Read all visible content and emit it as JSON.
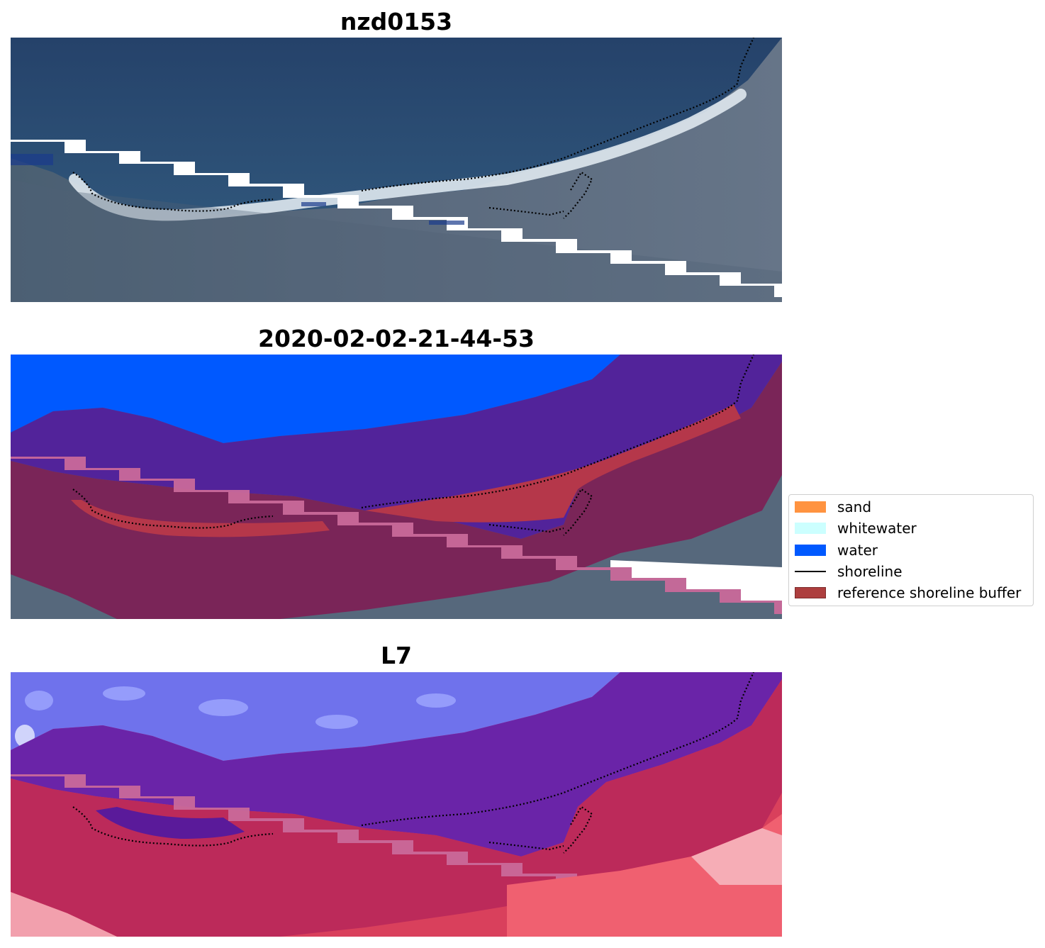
{
  "panels": [
    {
      "title": "nzd0153"
    },
    {
      "title": "2020-02-02-21-44-53"
    },
    {
      "title": "L7"
    }
  ],
  "legend": {
    "items": [
      {
        "label": "sand",
        "color": "#ff9340",
        "kind": "patch"
      },
      {
        "label": "whitewater",
        "color": "#ccffff",
        "kind": "patch"
      },
      {
        "label": "water",
        "color": "#0059ff",
        "kind": "patch"
      },
      {
        "label": "shoreline",
        "color": "#000000",
        "kind": "line"
      },
      {
        "label": "reference shoreline buffer",
        "color": "#a52a2a",
        "kind": "patch"
      }
    ]
  },
  "colors": {
    "rgb_sea": "#2b4a6e",
    "rgb_land": "#54647a",
    "class_water": "#0059ff",
    "buffer": "#8b2a5a",
    "sand_overlay": "#b5374a",
    "nodata_stripe": "#ffffff",
    "ndwi_water": "#6b6bf0",
    "ndwi_land": "#e0506a"
  }
}
